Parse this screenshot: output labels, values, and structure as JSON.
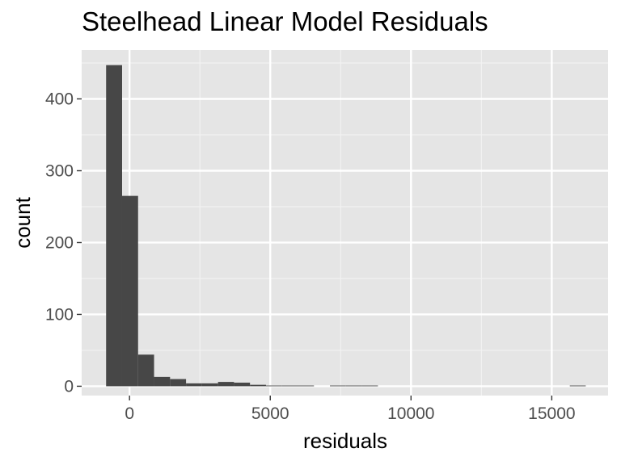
{
  "chart_data": {
    "type": "bar",
    "title": "Steelhead Linear Model Residuals",
    "xlabel": "residuals",
    "ylabel": "count",
    "x_ticks": [
      0,
      5000,
      10000,
      15000
    ],
    "x_tick_labels": [
      "0",
      "5000",
      "10000",
      "15000"
    ],
    "y_ticks": [
      0,
      100,
      200,
      300,
      400
    ],
    "y_tick_labels": [
      "0",
      "100",
      "200",
      "300",
      "400"
    ],
    "xlim": [
      -1700,
      17000
    ],
    "ylim": [
      -13,
      468
    ],
    "bin_width": 568,
    "bins": [
      {
        "x0": -832,
        "count": 447
      },
      {
        "x0": -264,
        "count": 265
      },
      {
        "x0": 304,
        "count": 44
      },
      {
        "x0": 872,
        "count": 13
      },
      {
        "x0": 1440,
        "count": 10
      },
      {
        "x0": 2008,
        "count": 4
      },
      {
        "x0": 2576,
        "count": 4
      },
      {
        "x0": 3144,
        "count": 6
      },
      {
        "x0": 3712,
        "count": 5
      },
      {
        "x0": 4280,
        "count": 2
      },
      {
        "x0": 4848,
        "count": 1
      },
      {
        "x0": 5416,
        "count": 1
      },
      {
        "x0": 5984,
        "count": 1
      },
      {
        "x0": 7120,
        "count": 1
      },
      {
        "x0": 7688,
        "count": 1
      },
      {
        "x0": 8256,
        "count": 1
      },
      {
        "x0": 15640,
        "count": 1
      }
    ],
    "grid": true,
    "legend": "none",
    "colors": {
      "panel": "#e5e5e5",
      "grid_major": "#ffffff",
      "bar": "#474747",
      "tick_text": "#4d4d4d"
    }
  }
}
